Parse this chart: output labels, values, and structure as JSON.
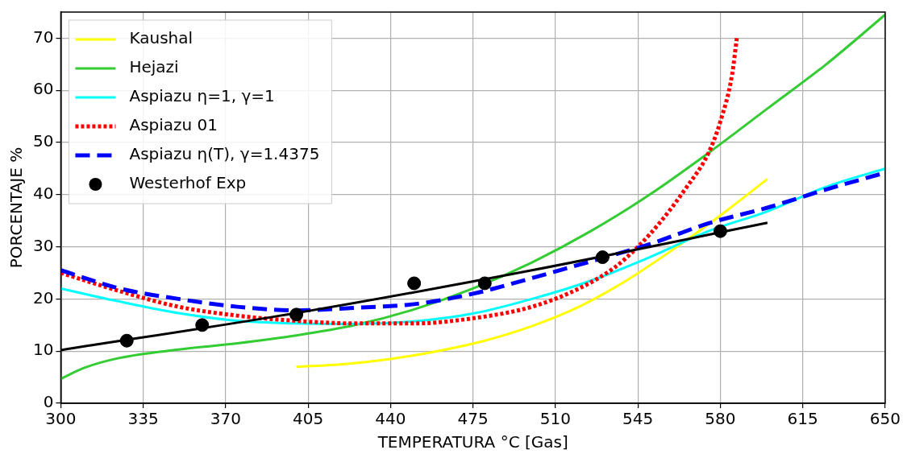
{
  "chart_data": {
    "type": "line",
    "xlabel": "TEMPERATURA °C [Gas]",
    "ylabel": "PORCENTAJE %",
    "xlim": [
      300,
      650
    ],
    "xticks": [
      300,
      335,
      370,
      405,
      440,
      475,
      510,
      545,
      580,
      615,
      650
    ],
    "ylim": [
      0,
      75
    ],
    "yticks": [
      0,
      10,
      20,
      30,
      40,
      50,
      60,
      70
    ],
    "grid": true,
    "legend": "top left",
    "series": [
      {
        "name": "Kaushal",
        "color": "#ffff00",
        "line_style": "solid",
        "x": [
          400,
          420,
          440,
          460,
          480,
          500,
          520,
          540,
          560,
          580,
          600
        ],
        "values": [
          7,
          7.5,
          8.5,
          10,
          12,
          14.8,
          18.5,
          23.5,
          29.5,
          36,
          43
        ]
      },
      {
        "name": "Hejazi",
        "color": "#33cc33",
        "line_style": "solid",
        "x": [
          300,
          310,
          325,
          350,
          375,
          400,
          425,
          450,
          475,
          500,
          525,
          550,
          575,
          600,
          625,
          650
        ],
        "values": [
          4.7,
          6.8,
          8.7,
          10.3,
          11.5,
          13,
          15,
          18,
          22,
          27,
          33,
          40,
          48,
          56.5,
          65,
          74.5
        ]
      },
      {
        "name": "Aspiazu η=1, γ=1",
        "color": "#00ffff",
        "line_style": "solid",
        "x": [
          300,
          325,
          350,
          375,
          400,
          425,
          450,
          475,
          500,
          525,
          550,
          575,
          600,
          625,
          650
        ],
        "values": [
          22,
          19.5,
          17.3,
          15.8,
          15.3,
          15.2,
          15.7,
          17.2,
          20,
          23.5,
          28,
          33,
          36.8,
          41.5,
          45
        ]
      },
      {
        "name": "Aspiazu 01",
        "color": "#ff0000",
        "line_style": "dotted",
        "x": [
          300,
          325,
          350,
          375,
          400,
          425,
          450,
          475,
          500,
          520,
          535,
          545,
          555,
          565,
          575,
          580,
          585,
          587
        ],
        "values": [
          25,
          21.5,
          18.5,
          16.8,
          15.8,
          15.3,
          15.3,
          16.3,
          18.5,
          22,
          26,
          30,
          35,
          41,
          48,
          54,
          63,
          70
        ]
      },
      {
        "name": "Aspiazu η(T), γ=1.4375",
        "color": "#0000ff",
        "line_style": "dashed",
        "x": [
          300,
          325,
          350,
          375,
          400,
          425,
          450,
          475,
          500,
          525,
          550,
          575,
          600,
          625,
          650
        ],
        "values": [
          25.5,
          22,
          20,
          18.5,
          17.8,
          18.3,
          19,
          21,
          24,
          27.2,
          30.5,
          34.5,
          37.5,
          41,
          44.2
        ]
      },
      {
        "name": "Westerhof Exp",
        "type": "scatter",
        "marker": "circle",
        "color": "#000000",
        "x": [
          328,
          360,
          400,
          450,
          480,
          530,
          580
        ],
        "values": [
          12,
          15,
          17,
          23,
          23,
          28,
          33
        ]
      },
      {
        "color": "#000000",
        "line_style": "solid",
        "x": [
          300,
          400,
          500,
          600
        ],
        "values": [
          10.2,
          17.3,
          25.5,
          34.6
        ]
      }
    ]
  }
}
